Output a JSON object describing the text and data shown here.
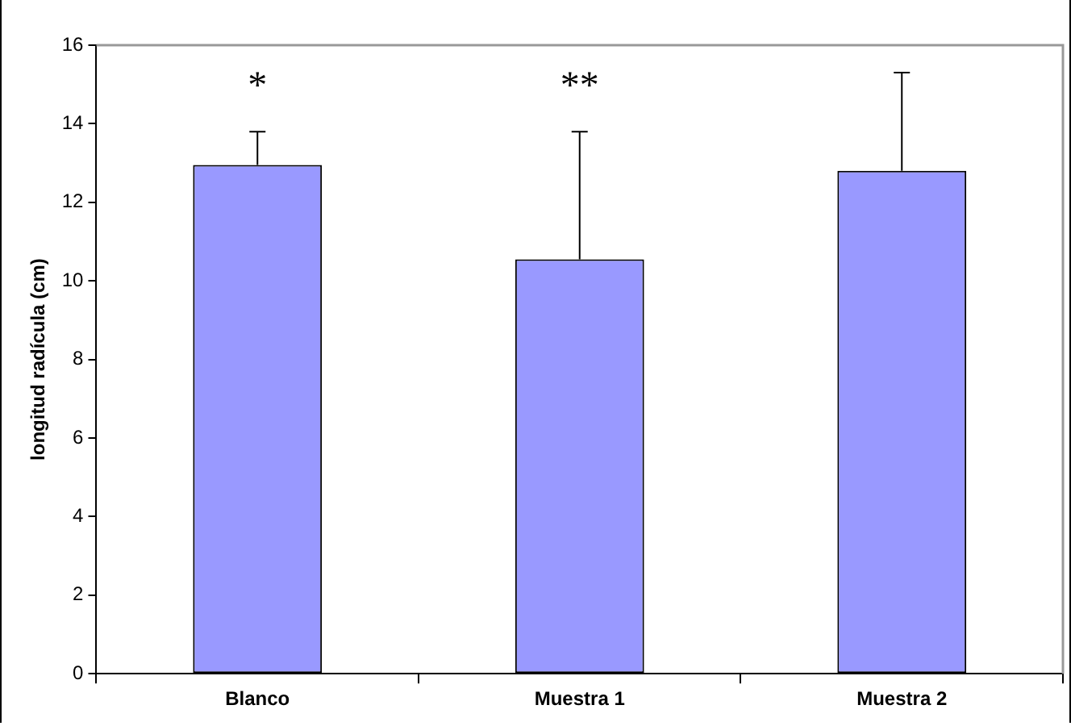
{
  "chart_data": {
    "type": "bar",
    "ylabel": "longitud radícula (cm)",
    "categories": [
      "Blanco",
      "Muestra 1",
      "Muestra 2"
    ],
    "values": [
      12.95,
      10.55,
      12.8
    ],
    "errors": [
      [
        12.95,
        13.8
      ],
      [
        10.55,
        13.8
      ],
      [
        12.8,
        15.3
      ]
    ],
    "color": "#9999ff",
    "ylim": [
      0,
      16
    ],
    "yticks": [
      0,
      2,
      4,
      6,
      8,
      10,
      12,
      14,
      16
    ],
    "grid": false,
    "legend": false,
    "annotations": [
      "*",
      "**"
    ]
  }
}
